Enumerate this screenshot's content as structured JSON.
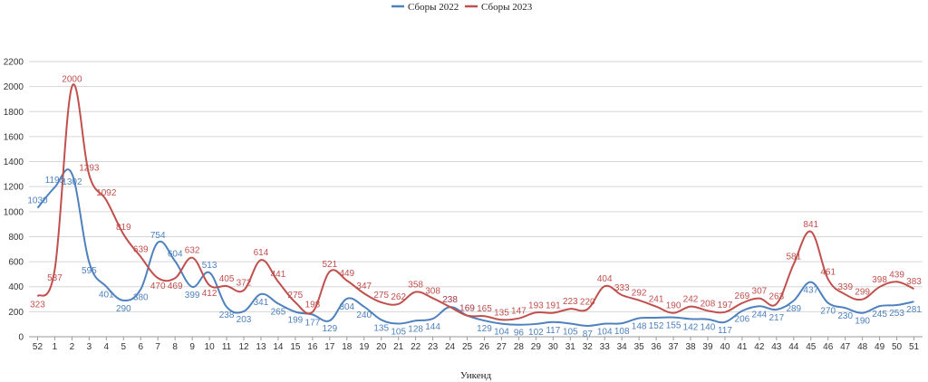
{
  "chart_data": {
    "type": "line",
    "title": "",
    "xlabel": "Уикенд",
    "ylabel": "",
    "ylim": [
      0,
      2200
    ],
    "yticks": [
      0,
      200,
      400,
      600,
      800,
      1000,
      1200,
      1400,
      1600,
      1800,
      2000,
      2200
    ],
    "grid": true,
    "legend_position": "top-center",
    "categories": [
      "52",
      "1",
      "2",
      "3",
      "4",
      "5",
      "6",
      "7",
      "8",
      "9",
      "10",
      "11",
      "12",
      "13",
      "14",
      "15",
      "16",
      "17",
      "18",
      "19",
      "20",
      "21",
      "22",
      "23",
      "24",
      "25",
      "26",
      "27",
      "28",
      "29",
      "30",
      "31",
      "32",
      "33",
      "34",
      "35",
      "36",
      "37",
      "38",
      "39",
      "40",
      "41",
      "42",
      "43",
      "44",
      "45",
      "46",
      "47",
      "48",
      "49",
      "50",
      "51"
    ],
    "series": [
      {
        "name": "Сборы 2022",
        "color": "#4e81bd",
        "values": [
          1030,
          1195,
          1302,
          595,
          401,
          290,
          380,
          754,
          604,
          399,
          513,
          238,
          203,
          341,
          265,
          199,
          177,
          129,
          304,
          240,
          135,
          105,
          128,
          144,
          238,
          169,
          129,
          104,
          96,
          102,
          117,
          105,
          87,
          104,
          108,
          148,
          152,
          155,
          142,
          140,
          117,
          206,
          244,
          217,
          289,
          437,
          270,
          230,
          190,
          245,
          253,
          281
        ]
      },
      {
        "name": "Сборы 2023",
        "color": "#c0504d",
        "values": [
          323,
          537,
          2000,
          1293,
          1092,
          819,
          639,
          470,
          469,
          632,
          412,
          405,
          372,
          614,
          441,
          275,
          198,
          521,
          449,
          347,
          275,
          262,
          358,
          308,
          238,
          169,
          165,
          135,
          147,
          193,
          191,
          223,
          220,
          404,
          333,
          292,
          241,
          190,
          242,
          208,
          197,
          269,
          307,
          263,
          581,
          841,
          461,
          339,
          299,
          398,
          439,
          383
        ]
      }
    ]
  }
}
